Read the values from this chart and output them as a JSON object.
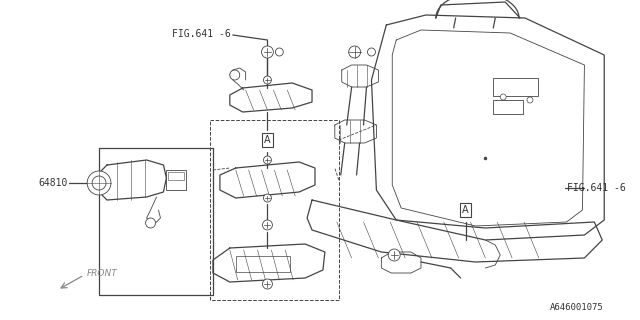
{
  "bg_color": "#ffffff",
  "line_color": "#444444",
  "text_color": "#333333",
  "fig_width": 6.4,
  "fig_height": 3.2,
  "dpi": 100,
  "labels": {
    "fig641_top": "FIG.641 -6",
    "fig641_right": "FIG.641 -6",
    "part_64810": "64810",
    "front_label": "FRONT",
    "diagram_id": "A646001075"
  }
}
